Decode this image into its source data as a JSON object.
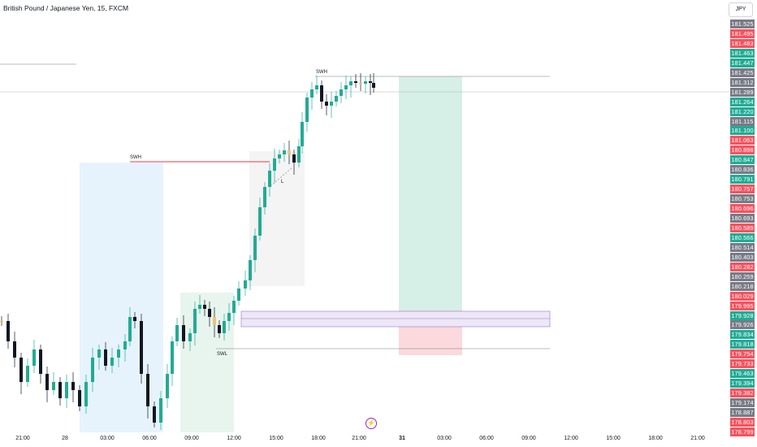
{
  "header": {
    "title": "British Pound / Japanese Yen, 15, FXCM",
    "currency_button": "JPY"
  },
  "annotations": {
    "swh_left": "SWH",
    "swh_top": "SWH",
    "swl": "SWL",
    "small_mark": "L"
  },
  "price_axis": [
    {
      "value": "181.525",
      "color": "gray"
    },
    {
      "value": "181.495",
      "color": "red"
    },
    {
      "value": "181.483",
      "color": "red"
    },
    {
      "value": "181.463",
      "color": "green"
    },
    {
      "value": "181.447",
      "color": "green"
    },
    {
      "value": "181.425",
      "color": "gray"
    },
    {
      "value": "181.312",
      "color": "gray"
    },
    {
      "value": "181.289",
      "color": "gray"
    },
    {
      "value": "181.264",
      "color": "green"
    },
    {
      "value": "181.220",
      "color": "green"
    },
    {
      "value": "181.115",
      "color": "gray"
    },
    {
      "value": "181.100",
      "color": "green"
    },
    {
      "value": "181.063",
      "color": "red"
    },
    {
      "value": "180.898",
      "color": "red"
    },
    {
      "value": "180.847",
      "color": "green"
    },
    {
      "value": "180.836",
      "color": "gray"
    },
    {
      "value": "180.791",
      "color": "green"
    },
    {
      "value": "180.757",
      "color": "red"
    },
    {
      "value": "180.753",
      "color": "gray"
    },
    {
      "value": "180.696",
      "color": "red"
    },
    {
      "value": "180.693",
      "color": "gray"
    },
    {
      "value": "180.589",
      "color": "red"
    },
    {
      "value": "180.566",
      "color": "green"
    },
    {
      "value": "180.514",
      "color": "gray"
    },
    {
      "value": "180.403",
      "color": "gray"
    },
    {
      "value": "180.282",
      "color": "red"
    },
    {
      "value": "180.259",
      "color": "gray"
    },
    {
      "value": "180.218",
      "color": "gray"
    },
    {
      "value": "180.029",
      "color": "red"
    },
    {
      "value": "179.995",
      "color": "red"
    },
    {
      "value": "179.928",
      "color": "green"
    },
    {
      "value": "179.926",
      "color": "gray"
    },
    {
      "value": "179.834",
      "color": "green"
    },
    {
      "value": "179.818",
      "color": "green"
    },
    {
      "value": "179.754",
      "color": "red"
    },
    {
      "value": "179.733",
      "color": "red"
    },
    {
      "value": "179.463",
      "color": "green"
    },
    {
      "value": "179.394",
      "color": "green"
    },
    {
      "value": "179.382",
      "color": "red"
    },
    {
      "value": "179.174",
      "color": "gray"
    },
    {
      "value": "178.887",
      "color": "gray"
    },
    {
      "value": "178.803",
      "color": "red"
    },
    {
      "value": "178.799",
      "color": "red"
    }
  ],
  "time_axis": [
    {
      "label": "21:00",
      "day": false
    },
    {
      "label": "28",
      "day": false
    },
    {
      "label": "03:00",
      "day": false
    },
    {
      "label": "06:00",
      "day": false
    },
    {
      "label": "09:00",
      "day": false
    },
    {
      "label": "12:00",
      "day": false
    },
    {
      "label": "15:00",
      "day": false
    },
    {
      "label": "18:00",
      "day": false
    },
    {
      "label": "21:00",
      "day": false
    },
    {
      "label": "31",
      "day": true
    },
    {
      "label": "03:00",
      "day": false
    },
    {
      "label": "06:00",
      "day": false
    },
    {
      "label": "09:00",
      "day": false
    },
    {
      "label": "12:00",
      "day": false
    },
    {
      "label": "15:00",
      "day": false
    },
    {
      "label": "18:00",
      "day": false
    },
    {
      "label": "21:00",
      "day": false
    }
  ],
  "colors": {
    "up": "#22ab94",
    "down": "#131722",
    "swh_line": "#f23645",
    "tp_zone": "#d6efe7",
    "sl_zone": "#fbd9dc",
    "purple_zone": "#ede7f6",
    "blue_zone": "#e3f2fd"
  }
}
